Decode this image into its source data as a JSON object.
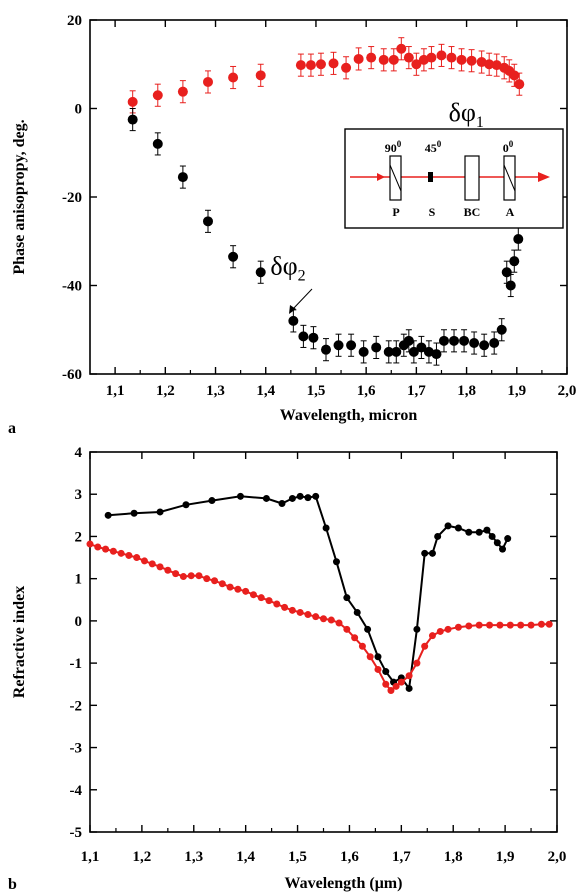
{
  "chart_data": [
    {
      "type": "scatter",
      "panel_label": "a",
      "xlabel": "Wavelength, micron",
      "ylabel": "Phase anisopropy, deg.",
      "xlim": [
        1.05,
        2.0
      ],
      "ylim": [
        -60,
        20
      ],
      "xticks": [
        1.1,
        1.2,
        1.3,
        1.4,
        1.5,
        1.6,
        1.7,
        1.8,
        1.9,
        2.0
      ],
      "xtick_labels": [
        "1,1",
        "1,2",
        "1,3",
        "1,4",
        "1,5",
        "1,6",
        "1,7",
        "1,8",
        "1,9",
        "2,0"
      ],
      "yticks": [
        20,
        0,
        -20,
        -40,
        -60
      ],
      "ytick_labels": [
        "20",
        "0",
        "-20",
        "-40",
        "-60"
      ],
      "grid": false,
      "error_bars": true,
      "series": [
        {
          "color": "#e8201e",
          "error": 2.5,
          "points": [
            [
              1.135,
              1.5
            ],
            [
              1.185,
              3.0
            ],
            [
              1.235,
              3.8
            ],
            [
              1.285,
              6.0
            ],
            [
              1.335,
              7.0
            ],
            [
              1.39,
              7.5
            ],
            [
              1.47,
              9.8
            ],
            [
              1.49,
              9.8
            ],
            [
              1.51,
              10.0
            ],
            [
              1.535,
              10.2
            ],
            [
              1.56,
              9.2
            ],
            [
              1.585,
              11.2
            ],
            [
              1.61,
              11.5
            ],
            [
              1.635,
              11.0
            ],
            [
              1.655,
              11.0
            ],
            [
              1.67,
              13.5
            ],
            [
              1.685,
              11.5
            ],
            [
              1.7,
              10.0
            ],
            [
              1.715,
              11.0
            ],
            [
              1.73,
              11.5
            ],
            [
              1.75,
              12.0
            ],
            [
              1.77,
              11.5
            ],
            [
              1.79,
              11.0
            ],
            [
              1.81,
              10.8
            ],
            [
              1.83,
              10.5
            ],
            [
              1.845,
              10.0
            ],
            [
              1.86,
              9.8
            ],
            [
              1.875,
              9.2
            ],
            [
              1.885,
              8.5
            ],
            [
              1.895,
              7.5
            ],
            [
              1.905,
              5.5
            ]
          ]
        },
        {
          "color": "#000000",
          "error": 2.5,
          "points": [
            [
              1.135,
              -2.5
            ],
            [
              1.185,
              -8.0
            ],
            [
              1.235,
              -15.5
            ],
            [
              1.285,
              -25.5
            ],
            [
              1.335,
              -33.5
            ],
            [
              1.39,
              -37.0
            ],
            [
              1.455,
              -48.0
            ],
            [
              1.475,
              -51.5
            ],
            [
              1.495,
              -51.8
            ],
            [
              1.52,
              -54.5
            ],
            [
              1.545,
              -53.5
            ],
            [
              1.57,
              -53.5
            ],
            [
              1.595,
              -55.0
            ],
            [
              1.62,
              -54.0
            ],
            [
              1.645,
              -55.0
            ],
            [
              1.66,
              -55.0
            ],
            [
              1.675,
              -53.5
            ],
            [
              1.685,
              -52.5
            ],
            [
              1.695,
              -55.0
            ],
            [
              1.71,
              -54.0
            ],
            [
              1.725,
              -55.0
            ],
            [
              1.74,
              -55.5
            ],
            [
              1.755,
              -52.5
            ],
            [
              1.775,
              -52.5
            ],
            [
              1.795,
              -52.5
            ],
            [
              1.815,
              -53.0
            ],
            [
              1.835,
              -53.5
            ],
            [
              1.855,
              -53.0
            ],
            [
              1.87,
              -50.0
            ],
            [
              1.88,
              -37.0
            ],
            [
              1.888,
              -40.0
            ],
            [
              1.895,
              -34.5
            ],
            [
              1.903,
              -29.5
            ]
          ]
        }
      ],
      "annotations": [
        {
          "symbol": "δφ",
          "subscript": "1",
          "color": "#e8201e",
          "x": 1.82,
          "y": -1.5
        },
        {
          "symbol": "δφ",
          "subscript": "2",
          "color": "#000000",
          "x": 1.465,
          "y": -37.5
        }
      ],
      "inset": {
        "angles": [
          "90",
          "45",
          "0"
        ],
        "angle_units": "0",
        "element_labels": [
          "P",
          "S",
          "BC",
          "A"
        ]
      }
    },
    {
      "type": "line",
      "panel_label": "b",
      "xlabel": "Wavelength (μm)",
      "ylabel": "Refractive index",
      "xlim": [
        1.1,
        2.0
      ],
      "ylim": [
        -5,
        4
      ],
      "xticks": [
        1.1,
        1.2,
        1.3,
        1.4,
        1.5,
        1.6,
        1.7,
        1.8,
        1.9,
        2.0
      ],
      "xtick_labels": [
        "1,1",
        "1,2",
        "1,3",
        "1,4",
        "1,5",
        "1,6",
        "1,7",
        "1,8",
        "1,9",
        "2,0"
      ],
      "yticks": [
        4,
        3,
        2,
        1,
        0,
        -1,
        -2,
        -3,
        -4,
        -5
      ],
      "ytick_labels": [
        "4",
        "3",
        "2",
        "1",
        "0",
        "-1",
        "-2",
        "-3",
        "-4",
        "-5"
      ],
      "grid": false,
      "series": [
        {
          "color": "#000000",
          "markers": true,
          "points": [
            [
              1.135,
              2.5
            ],
            [
              1.185,
              2.55
            ],
            [
              1.235,
              2.58
            ],
            [
              1.285,
              2.75
            ],
            [
              1.335,
              2.85
            ],
            [
              1.39,
              2.95
            ],
            [
              1.44,
              2.9
            ],
            [
              1.47,
              2.78
            ],
            [
              1.49,
              2.9
            ],
            [
              1.505,
              2.95
            ],
            [
              1.52,
              2.92
            ],
            [
              1.535,
              2.95
            ],
            [
              1.555,
              2.2
            ],
            [
              1.575,
              1.4
            ],
            [
              1.595,
              0.55
            ],
            [
              1.615,
              0.2
            ],
            [
              1.635,
              -0.2
            ],
            [
              1.655,
              -0.85
            ],
            [
              1.67,
              -1.2
            ],
            [
              1.685,
              -1.45
            ],
            [
              1.7,
              -1.35
            ],
            [
              1.715,
              -1.6
            ],
            [
              1.73,
              -0.2
            ],
            [
              1.745,
              1.6
            ],
            [
              1.76,
              1.6
            ],
            [
              1.77,
              2.0
            ],
            [
              1.79,
              2.25
            ],
            [
              1.81,
              2.2
            ],
            [
              1.83,
              2.1
            ],
            [
              1.85,
              2.1
            ],
            [
              1.865,
              2.15
            ],
            [
              1.875,
              2.0
            ],
            [
              1.885,
              1.85
            ],
            [
              1.895,
              1.7
            ],
            [
              1.905,
              1.95
            ]
          ]
        },
        {
          "color": "#e8201e",
          "markers": true,
          "points": [
            [
              1.1,
              1.82
            ],
            [
              1.115,
              1.75
            ],
            [
              1.13,
              1.7
            ],
            [
              1.145,
              1.65
            ],
            [
              1.16,
              1.6
            ],
            [
              1.175,
              1.55
            ],
            [
              1.19,
              1.5
            ],
            [
              1.205,
              1.42
            ],
            [
              1.22,
              1.35
            ],
            [
              1.235,
              1.28
            ],
            [
              1.25,
              1.2
            ],
            [
              1.265,
              1.12
            ],
            [
              1.28,
              1.05
            ],
            [
              1.295,
              1.07
            ],
            [
              1.31,
              1.07
            ],
            [
              1.325,
              1.0
            ],
            [
              1.34,
              0.95
            ],
            [
              1.355,
              0.88
            ],
            [
              1.37,
              0.8
            ],
            [
              1.385,
              0.75
            ],
            [
              1.4,
              0.7
            ],
            [
              1.415,
              0.62
            ],
            [
              1.43,
              0.55
            ],
            [
              1.445,
              0.48
            ],
            [
              1.46,
              0.4
            ],
            [
              1.475,
              0.32
            ],
            [
              1.49,
              0.25
            ],
            [
              1.505,
              0.2
            ],
            [
              1.52,
              0.15
            ],
            [
              1.535,
              0.1
            ],
            [
              1.55,
              0.05
            ],
            [
              1.565,
              0.02
            ],
            [
              1.58,
              -0.05
            ],
            [
              1.595,
              -0.2
            ],
            [
              1.61,
              -0.4
            ],
            [
              1.625,
              -0.6
            ],
            [
              1.64,
              -0.85
            ],
            [
              1.655,
              -1.15
            ],
            [
              1.67,
              -1.5
            ],
            [
              1.68,
              -1.65
            ],
            [
              1.69,
              -1.55
            ],
            [
              1.7,
              -1.45
            ],
            [
              1.715,
              -1.3
            ],
            [
              1.73,
              -1.0
            ],
            [
              1.745,
              -0.6
            ],
            [
              1.76,
              -0.35
            ],
            [
              1.775,
              -0.25
            ],
            [
              1.79,
              -0.2
            ],
            [
              1.81,
              -0.15
            ],
            [
              1.83,
              -0.12
            ],
            [
              1.85,
              -0.1
            ],
            [
              1.87,
              -0.1
            ],
            [
              1.89,
              -0.1
            ],
            [
              1.91,
              -0.1
            ],
            [
              1.93,
              -0.1
            ],
            [
              1.95,
              -0.1
            ],
            [
              1.97,
              -0.08
            ],
            [
              1.985,
              -0.08
            ]
          ]
        }
      ]
    }
  ]
}
